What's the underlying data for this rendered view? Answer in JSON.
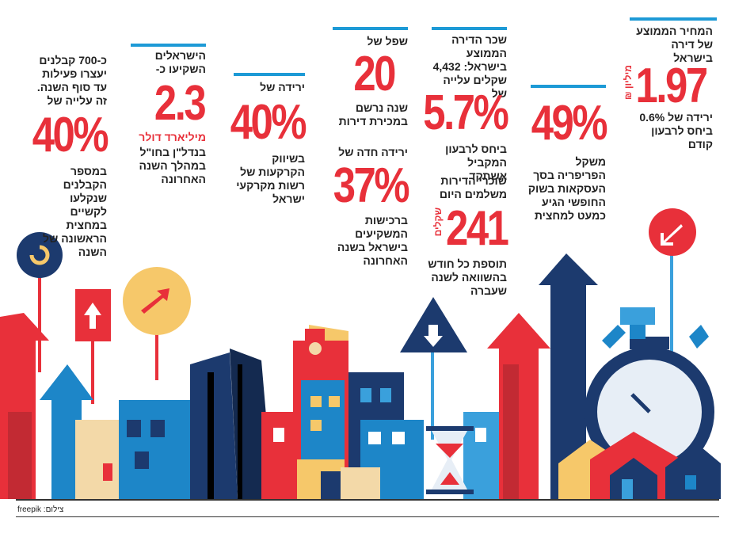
{
  "columns": [
    {
      "lead": "המחיר הממוצע של דירה בישראל",
      "figure": "1.97",
      "unit": "מיליון ₪",
      "note": "ירידה של 0.6% ביחס לרבעון קודם"
    },
    {
      "figure": "49%",
      "note": "משקל הפריפריה בסך העסקאות בשוק החופשי הגיע כמעט למחצית"
    },
    {
      "lead": "שכר הדירה הממוצע בישראל: 4,432 שקלים עלייה של",
      "figure": "5.7%",
      "note": "ביחס לרבעון המקביל אשתקד",
      "lead2": "שוכרי הדירות משלמים היום",
      "figure2": "241",
      "unit2": "שקלים",
      "note2": "תוספת כל חודש בהשוואה לשנה שעברה"
    },
    {
      "lead": "שפל של",
      "figure": "20",
      "note": "שנה נרשם במכירת דירות",
      "lead2": "ירידה חדה של",
      "figure2": "37%",
      "note2": "ברכישות המשקיעים בישראל בשנה האחרונה"
    },
    {
      "lead": "ירידה של",
      "figure": "40%",
      "note": "בשיווק הקרקעות של רשות מקרקעי ישראל"
    },
    {
      "lead": "הישראלים השקיעו כ-",
      "figure": "2.3",
      "unit": "מיליארד דולר",
      "note": "בנדל\"ן בחו\"ל במהלך השנה האחרונה"
    },
    {
      "lead": "כ-700 קבלנים יעצרו פעילות עד סוף השנה. זה עלייה של",
      "figure": "40%",
      "note": "במספר הקבלנים שנקלעו לקשיים במחצית הראשונה של השנה"
    }
  ],
  "credit": "צילום: freepik"
}
